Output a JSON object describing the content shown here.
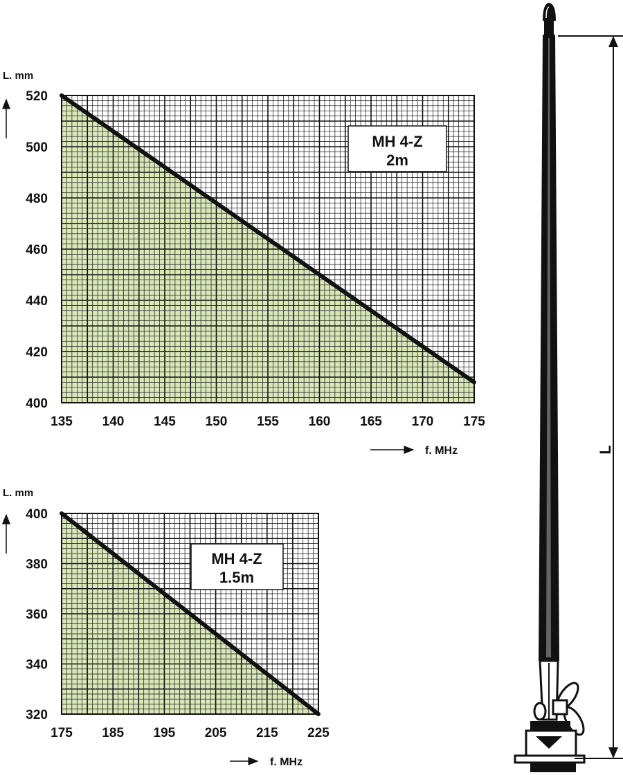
{
  "chart_data": [
    {
      "type": "area",
      "title": "MH 4-Z",
      "subtitle": "2m",
      "xlabel": "f. MHz",
      "ylabel": "L. mm",
      "x_ticks": [
        "135",
        "140",
        "145",
        "150",
        "155",
        "160",
        "165",
        "170",
        "175"
      ],
      "y_ticks": [
        "400",
        "420",
        "440",
        "460",
        "480",
        "500",
        "520"
      ],
      "xlim": [
        135,
        175
      ],
      "ylim": [
        400,
        520
      ],
      "grid": true,
      "fill_color": "#d9e7b8",
      "line_color": "#111111",
      "points": [
        [
          135,
          520
        ],
        [
          175,
          408
        ]
      ]
    },
    {
      "type": "area",
      "title": "MH 4-Z",
      "subtitle": "1.5m",
      "xlabel": "f. MHz",
      "ylabel": "L. mm",
      "x_ticks": [
        "175",
        "185",
        "195",
        "205",
        "215",
        "225"
      ],
      "y_ticks": [
        "320",
        "340",
        "360",
        "380",
        "400"
      ],
      "xlim": [
        175,
        225
      ],
      "ylim": [
        320,
        400
      ],
      "grid": true,
      "fill_color": "#d9e7b8",
      "line_color": "#111111",
      "points": [
        [
          175,
          400
        ],
        [
          225,
          320
        ]
      ]
    }
  ],
  "antenna": {
    "dimension_label": "L"
  }
}
